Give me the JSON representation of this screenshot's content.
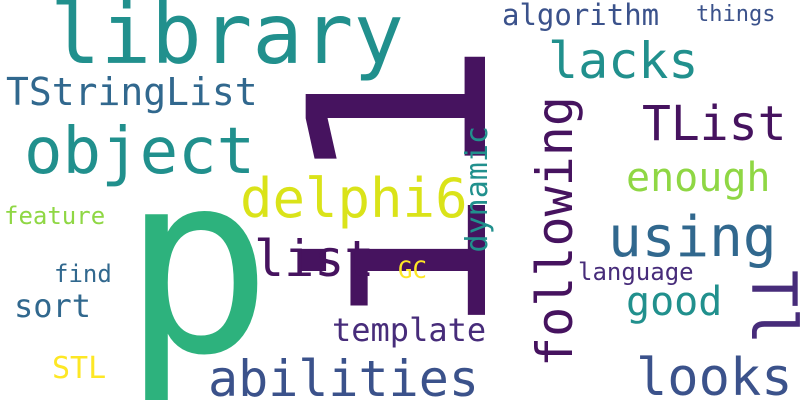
{
  "words": {
    "i1": "i1",
    "p": "p",
    "library": "library",
    "object": "object",
    "lacks": "lacks",
    "algorithm": "algorithm",
    "things": "things",
    "TStringList": "TStringList",
    "TList": "TList",
    "delphi6": "delphi6",
    "enough": "enough",
    "following": "following",
    "dynamic": "dynamic",
    "using": "using",
    "feature": "feature",
    "list": "list",
    "GC": "GC",
    "language": "language",
    "good": "good",
    "find": "find",
    "sort": "sort",
    "template": "template",
    "Tl": "Tl",
    "STL": "STL",
    "abilities": "abilities",
    "looks": "looks"
  },
  "colors": {
    "dark_purple": "#46135f",
    "purple": "#472c7a",
    "indigo": "#3b528b",
    "blue": "#31688e",
    "teal": "#21908d",
    "green": "#25ab82",
    "emerald": "#2db27d",
    "lime": "#8fd744",
    "yellow_green": "#b5de2b",
    "yellow": "#dae319",
    "bright_yellow": "#fde725"
  }
}
